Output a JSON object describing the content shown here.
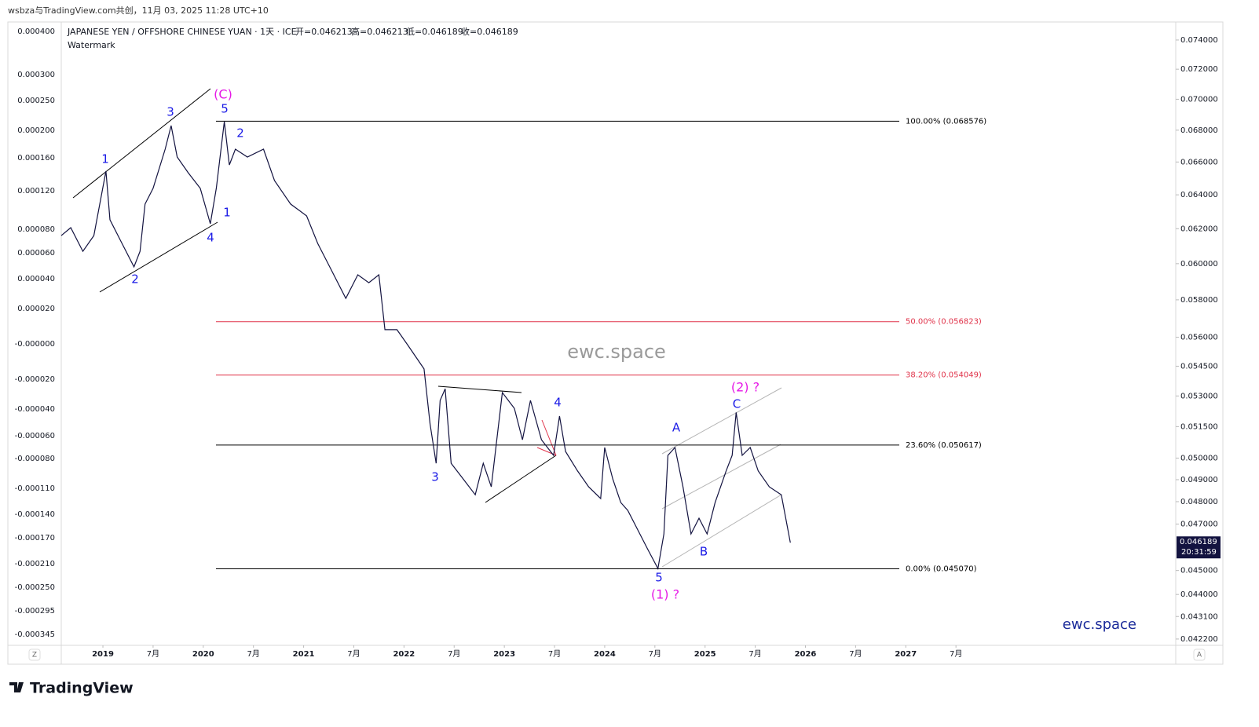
{
  "header": "wsbza与TradingView.com共创，11月 03, 2025 11:28 UTC+10",
  "chart_data": {
    "type": "line",
    "symbol": "JAPANESE YEN / OFFSHORE CHINESE YUAN · 1天 · ICE",
    "ohlc": [
      "开=0.046213",
      "高=0.046213",
      "低=0.046189",
      "收=0.046189"
    ],
    "subtitle": "Watermark",
    "watermark": "ewc.space",
    "brand": "ewc.space",
    "color": "#131340",
    "log_scale": true,
    "grid": false,
    "x": [
      2018.585,
      2018.68,
      2018.8,
      2018.91,
      2019.03,
      2019.07,
      2019.19,
      2019.31,
      2019.37,
      2019.42,
      2019.5,
      2019.62,
      2019.68,
      2019.74,
      2019.85,
      2019.97,
      2020.07,
      2020.13,
      2020.21,
      2020.26,
      2020.32,
      2020.44,
      2020.6,
      2020.71,
      2020.87,
      2021.03,
      2021.14,
      2021.26,
      2021.42,
      2021.54,
      2021.65,
      2021.75,
      2021.81,
      2021.93,
      2022.04,
      2022.2,
      2022.26,
      2022.32,
      2022.36,
      2022.41,
      2022.47,
      2022.59,
      2022.71,
      2022.79,
      2022.87,
      2022.98,
      2023.1,
      2023.18,
      2023.26,
      2023.37,
      2023.49,
      2023.55,
      2023.61,
      2023.73,
      2023.84,
      2023.96,
      2024.0,
      2024.08,
      2024.16,
      2024.23,
      2024.35,
      2024.43,
      2024.53,
      2024.59,
      2024.63,
      2024.7,
      2024.78,
      2024.86,
      2024.94,
      2025.02,
      2025.1,
      2025.21,
      2025.27,
      2025.31,
      2025.37,
      2025.45,
      2025.53,
      2025.64,
      2025.76,
      2025.85
    ],
    "values": [
      0.0616,
      0.06206,
      0.0607,
      0.0616,
      0.06544,
      0.06252,
      0.06115,
      0.05982,
      0.0607,
      0.06345,
      0.06439,
      0.0668,
      0.06829,
      0.06631,
      0.06534,
      0.06439,
      0.06229,
      0.06439,
      0.06855,
      0.06582,
      0.0668,
      0.06631,
      0.0668,
      0.06486,
      0.06345,
      0.06275,
      0.06115,
      0.05982,
      0.05808,
      0.05938,
      0.05894,
      0.05938,
      0.0564,
      0.0564,
      0.05557,
      0.05436,
      0.05162,
      0.04976,
      0.05278,
      0.05336,
      0.04976,
      0.04903,
      0.04831,
      0.04976,
      0.04867,
      0.05317,
      0.05239,
      0.05087,
      0.05278,
      0.05087,
      0.05013,
      0.05201,
      0.05031,
      0.0494,
      0.04867,
      0.04814,
      0.0505,
      0.04903,
      0.04796,
      0.04761,
      0.04657,
      0.04589,
      0.04508,
      0.04657,
      0.05013,
      0.0505,
      0.04867,
      0.04657,
      0.04726,
      0.04657,
      0.04796,
      0.0494,
      0.05013,
      0.05219,
      0.05013,
      0.0505,
      0.0494,
      0.04867,
      0.04831,
      0.046189
    ],
    "xlim": [
      2018.585,
      2029.69
    ],
    "xticks": [
      {
        "value": 2019,
        "label": "2019"
      },
      {
        "value": 2019.5,
        "label": "7月"
      },
      {
        "value": 2020,
        "label": "2020"
      },
      {
        "value": 2020.5,
        "label": "7月"
      },
      {
        "value": 2021,
        "label": "2021"
      },
      {
        "value": 2021.5,
        "label": "7月"
      },
      {
        "value": 2022,
        "label": "2022"
      },
      {
        "value": 2022.5,
        "label": "7月"
      },
      {
        "value": 2023,
        "label": "2023"
      },
      {
        "value": 2023.5,
        "label": "7月"
      },
      {
        "value": 2024,
        "label": "2024"
      },
      {
        "value": 2024.5,
        "label": "7月"
      },
      {
        "value": 2025,
        "label": "2025"
      },
      {
        "value": 2025.5,
        "label": "7月"
      },
      {
        "value": 2026,
        "label": "2026"
      },
      {
        "value": 2026.5,
        "label": "7月"
      },
      {
        "value": 2027,
        "label": "2027"
      },
      {
        "value": 2027.5,
        "label": "7月"
      }
    ],
    "ylim": [
      0.04195,
      0.07526
    ],
    "yticks": [
      {
        "value": 0.074,
        "label": "0.074000"
      },
      {
        "value": 0.072,
        "label": "0.072000"
      },
      {
        "value": 0.07,
        "label": "0.070000"
      },
      {
        "value": 0.068,
        "label": "0.068000"
      },
      {
        "value": 0.066,
        "label": "0.066000"
      },
      {
        "value": 0.064,
        "label": "0.064000"
      },
      {
        "value": 0.062,
        "label": "0.062000"
      },
      {
        "value": 0.06,
        "label": "0.060000"
      },
      {
        "value": 0.058,
        "label": "0.058000"
      },
      {
        "value": 0.056,
        "label": "0.056000"
      },
      {
        "value": 0.0545,
        "label": "0.054500"
      },
      {
        "value": 0.053,
        "label": "0.053000"
      },
      {
        "value": 0.0515,
        "label": "0.051500"
      },
      {
        "value": 0.05,
        "label": "0.050000"
      },
      {
        "value": 0.049,
        "label": "0.049000"
      },
      {
        "value": 0.048,
        "label": "0.048000"
      },
      {
        "value": 0.047,
        "label": "0.047000"
      },
      {
        "value": 0.045,
        "label": "0.045000"
      },
      {
        "value": 0.044,
        "label": "0.044000"
      },
      {
        "value": 0.0431,
        "label": "0.043100"
      },
      {
        "value": 0.0422,
        "label": "0.042200"
      }
    ],
    "left_axis_labels": [
      "0.000400",
      "0.000300",
      "0.000250",
      "0.000200",
      "0.000160",
      "0.000120",
      "0.000080",
      "0.000060",
      "0.000040",
      "0.000020",
      "-0.000000",
      "-0.000020",
      "-0.000040",
      "-0.000060",
      "-0.000080",
      "-0.000110",
      "-0.000140",
      "-0.000170",
      "-0.000210",
      "-0.000250",
      "-0.000295",
      "-0.000345"
    ],
    "last_price": 0.046189,
    "countdown": "20:31:59",
    "fib_levels": [
      {
        "label": "100.00% (0.068576)",
        "value": 0.068576,
        "color": "#000000"
      },
      {
        "label": "50.00% (0.056823)",
        "value": 0.056823,
        "color": "#e0334a"
      },
      {
        "label": "38.20% (0.054049)",
        "value": 0.054049,
        "color": "#e0334a"
      },
      {
        "label": "23.60% (0.050617)",
        "value": 0.050617,
        "color": "#000000"
      },
      {
        "label": "0.00% (0.045070)",
        "value": 0.04507,
        "color": "#000000"
      }
    ],
    "annotations": [
      {
        "text": "1",
        "color": "#1a1ae6"
      },
      {
        "text": "2",
        "color": "#1a1ae6"
      },
      {
        "text": "3",
        "color": "#1a1ae6"
      },
      {
        "text": "4",
        "color": "#1a1ae6"
      },
      {
        "text": "5",
        "color": "#1a1ae6"
      },
      {
        "text": "(C)",
        "color": "#e619e6"
      },
      {
        "text": "2",
        "color": "#1a1ae6"
      },
      {
        "text": "1",
        "color": "#1a1ae6"
      },
      {
        "text": "3",
        "color": "#1a1ae6"
      },
      {
        "text": "4",
        "color": "#1a1ae6"
      },
      {
        "text": "5",
        "color": "#1a1ae6"
      },
      {
        "text": "(1) ?",
        "color": "#e619e6"
      },
      {
        "text": "A",
        "color": "#1a1ae6"
      },
      {
        "text": "B",
        "color": "#1a1ae6"
      },
      {
        "text": "C",
        "color": "#1a1ae6"
      },
      {
        "text": "(2) ?",
        "color": "#e619e6"
      }
    ]
  },
  "buttons": {
    "left": "Z",
    "right": "A"
  },
  "footer": "TradingView"
}
